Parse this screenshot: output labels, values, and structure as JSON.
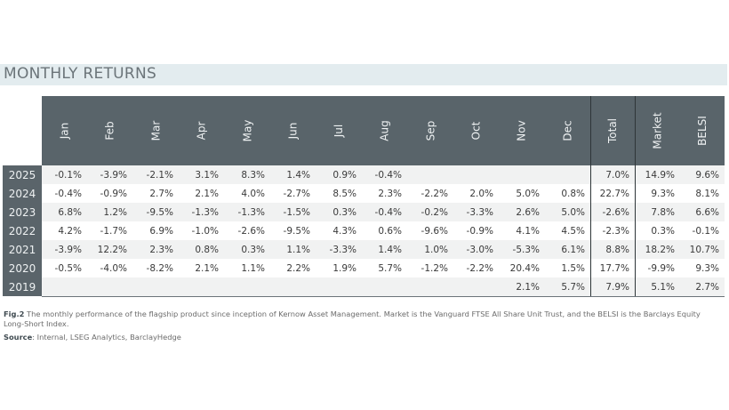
{
  "section": {
    "title": "MONTHLY RETURNS"
  },
  "table": {
    "columns": [
      "Jan",
      "Feb",
      "Mar",
      "Apr",
      "May",
      "Jun",
      "Jul",
      "Aug",
      "Sep",
      "Oct",
      "Nov",
      "Dec",
      "Total",
      "Market",
      "BELSI"
    ],
    "rows": [
      {
        "year": "2025",
        "values": [
          "-0.1%",
          "-3.9%",
          "-2.1%",
          "3.1%",
          "8.3%",
          "1.4%",
          "0.9%",
          "-0.4%",
          "",
          "",
          "",
          "",
          "7.0%",
          "14.9%",
          "9.6%"
        ]
      },
      {
        "year": "2024",
        "values": [
          "-0.4%",
          "-0.9%",
          "2.7%",
          "2.1%",
          "4.0%",
          "-2.7%",
          "8.5%",
          "2.3%",
          "-2.2%",
          "2.0%",
          "5.0%",
          "0.8%",
          "22.7%",
          "9.3%",
          "8.1%"
        ]
      },
      {
        "year": "2023",
        "values": [
          "6.8%",
          "1.2%",
          "-9.5%",
          "-1.3%",
          "-1.3%",
          "-1.5%",
          "0.3%",
          "-0.4%",
          "-0.2%",
          "-3.3%",
          "2.6%",
          "5.0%",
          "-2.6%",
          "7.8%",
          "6.6%"
        ]
      },
      {
        "year": "2022",
        "values": [
          "4.2%",
          "-1.7%",
          "6.9%",
          "-1.0%",
          "-2.6%",
          "-9.5%",
          "4.3%",
          "0.6%",
          "-9.6%",
          "-0.9%",
          "4.1%",
          "4.5%",
          "-2.3%",
          "0.3%",
          "-0.1%"
        ]
      },
      {
        "year": "2021",
        "values": [
          "-3.9%",
          "12.2%",
          "2.3%",
          "0.8%",
          "0.3%",
          "1.1%",
          "-3.3%",
          "1.4%",
          "1.0%",
          "-3.0%",
          "-5.3%",
          "6.1%",
          "8.8%",
          "18.2%",
          "10.7%"
        ]
      },
      {
        "year": "2020",
        "values": [
          "-0.5%",
          "-4.0%",
          "-8.2%",
          "2.1%",
          "1.1%",
          "2.2%",
          "1.9%",
          "5.7%",
          "-1.2%",
          "-2.2%",
          "20.4%",
          "1.5%",
          "17.7%",
          "-9.9%",
          "9.3%"
        ]
      },
      {
        "year": "2019",
        "values": [
          "",
          "",
          "",
          "",
          "",
          "",
          "",
          "",
          "",
          "",
          "2.1%",
          "5.7%",
          "7.9%",
          "5.1%",
          "2.7%"
        ]
      }
    ]
  },
  "caption": {
    "label": "Fig.2",
    "text": " The monthly performance of the flagship product since inception of Kernow Asset Management. Market is the Vanguard FTSE All Share Unit Trust, and the BELSI is the Barclays Equity Long-Short Index."
  },
  "source": {
    "label": "Source",
    "text": ": Internal, LSEG Analytics, BarclayHedge"
  },
  "colors": {
    "header_bg": "#59646a",
    "title_band": "#e3ecef",
    "stripe": "#f1f2f2"
  }
}
